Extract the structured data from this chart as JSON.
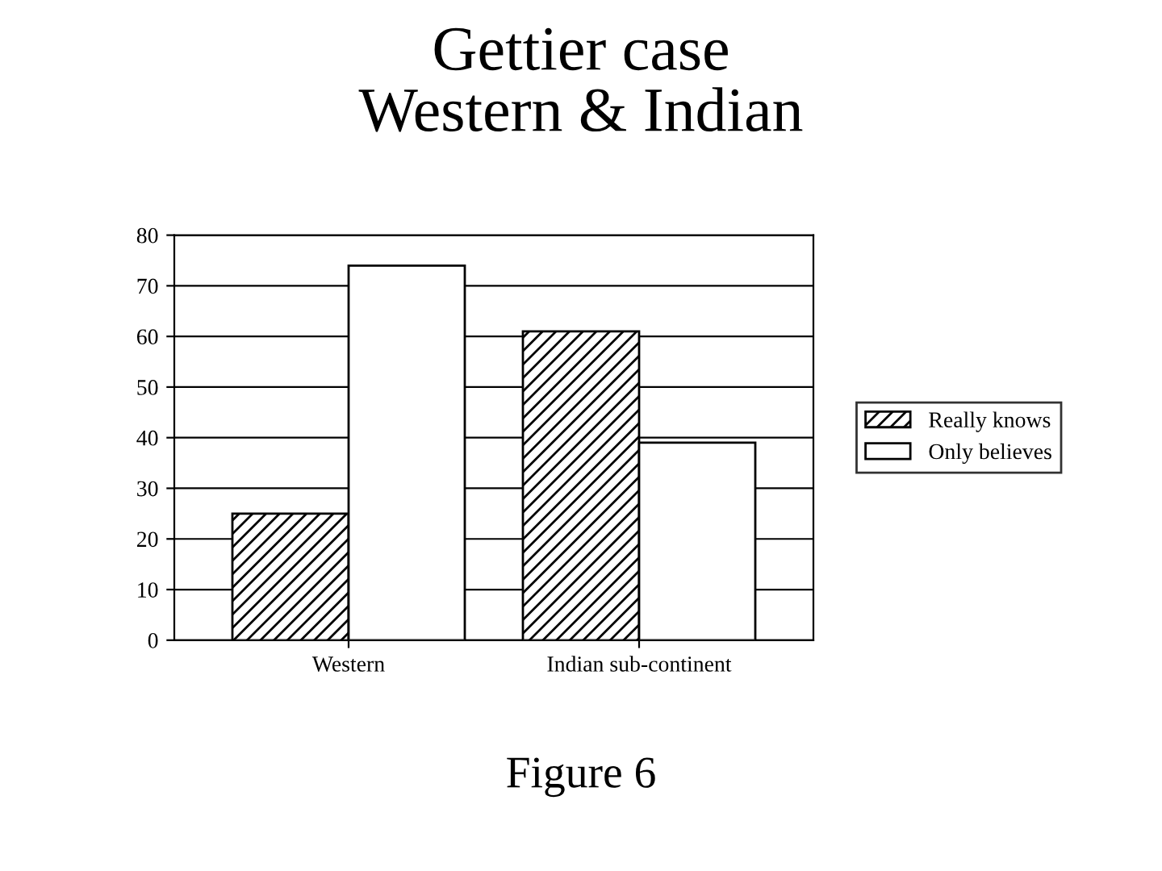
{
  "chart_data": {
    "type": "bar",
    "title": "Gettier case\nWestern & Indian",
    "categories": [
      "Western",
      "Indian sub-continent"
    ],
    "series": [
      {
        "name": "Really knows",
        "color": "#000000",
        "values": [
          25,
          61
        ]
      },
      {
        "name": "Only believes",
        "color": "#ffffff",
        "values": [
          74,
          39
        ]
      }
    ],
    "ylim": [
      0,
      80
    ],
    "yticks": [
      0,
      10,
      20,
      30,
      40,
      50,
      60,
      70,
      80
    ],
    "grid": "y",
    "legend": "right",
    "annotations": [
      "Figure 6"
    ]
  }
}
